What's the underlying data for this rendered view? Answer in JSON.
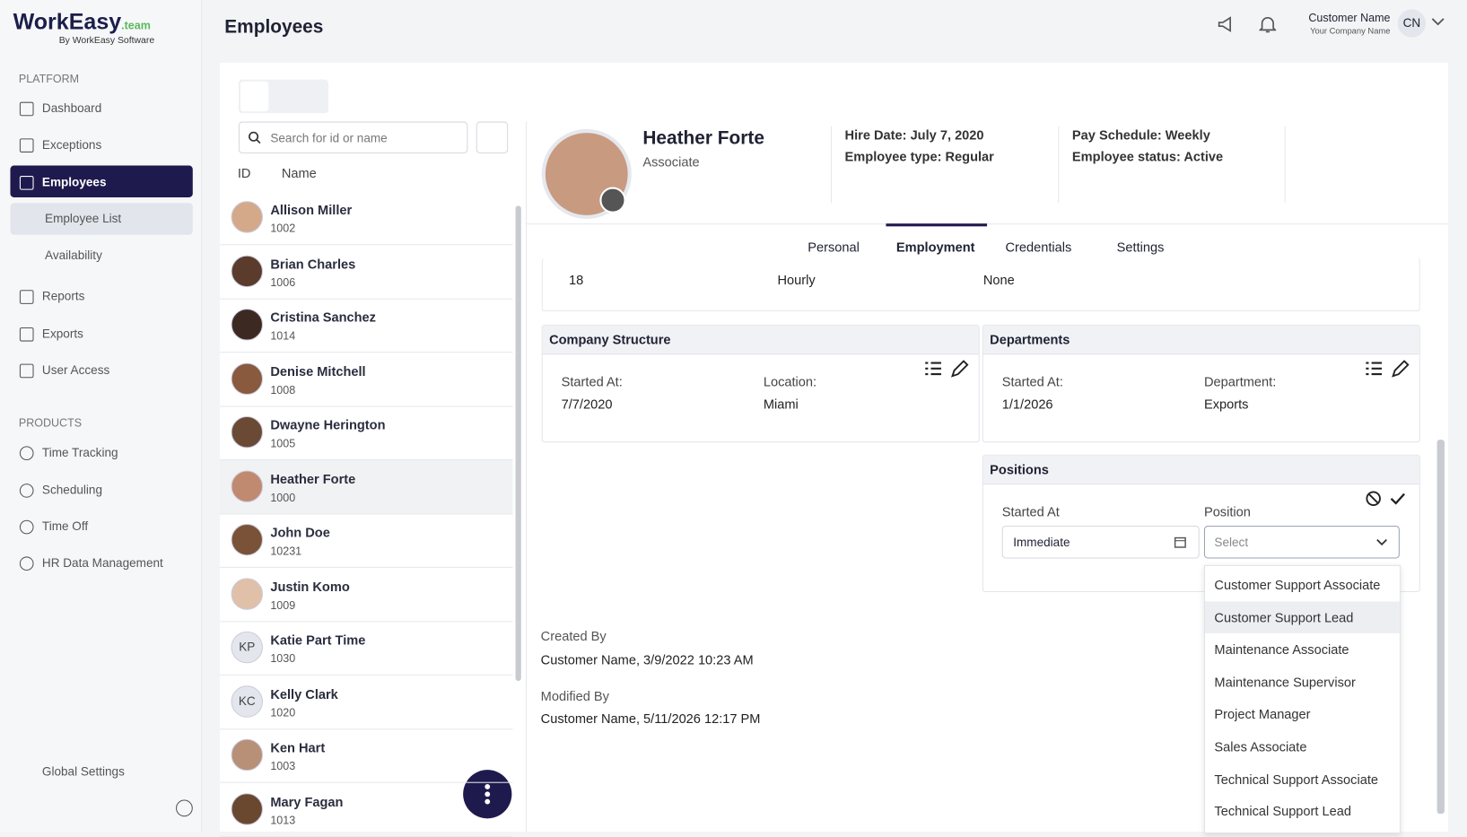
{
  "brand": {
    "logo": "WorkEasy",
    "logo_suffix": ".team",
    "tagline": "By WorkEasy Software"
  },
  "sidebar": {
    "platform_label": "PLATFORM",
    "platform_items": [
      "Dashboard",
      "Exceptions",
      "Employees",
      "Employee List",
      "Availability",
      "Reports",
      "Exports",
      "User Access"
    ],
    "products_label": "PRODUCTS",
    "product_items": [
      "Time Tracking",
      "Scheduling",
      "Time Off",
      "HR Data Management"
    ],
    "settings": "Global Settings"
  },
  "header": {
    "title": "Employees",
    "user_name": "Customer Name",
    "company": "Your Company Name",
    "initials": "CN"
  },
  "list": {
    "search_placeholder": "Search for id or name",
    "col_id": "ID",
    "col_name": "Name",
    "employees": [
      {
        "name": "Allison Miller",
        "id": "1002"
      },
      {
        "name": "Brian Charles",
        "id": "1006"
      },
      {
        "name": "Cristina Sanchez",
        "id": "1014"
      },
      {
        "name": "Denise Mitchell",
        "id": "1008"
      },
      {
        "name": "Dwayne Herington",
        "id": "1005"
      },
      {
        "name": "Heather Forte",
        "id": "1000"
      },
      {
        "name": "John Doe",
        "id": "10231"
      },
      {
        "name": "Justin Komo",
        "id": "1009"
      },
      {
        "name": "Katie Part Time",
        "id": "1030",
        "initials": "KP"
      },
      {
        "name": "Kelly Clark",
        "id": "1020",
        "initials": "KC"
      },
      {
        "name": "Ken Hart",
        "id": "1003"
      },
      {
        "name": "Mary Fagan",
        "id": "1013"
      }
    ]
  },
  "profile": {
    "name": "Heather Forte",
    "role": "Associate",
    "hire_date": "Hire Date: July 7, 2020",
    "employee_type": "Employee type: Regular",
    "pay_schedule": "Pay Schedule: Weekly",
    "status": "Employee status: Active"
  },
  "tabs": [
    "Personal",
    "Employment",
    "Credentials",
    "Settings"
  ],
  "partial_row": [
    "18",
    "Hourly",
    "None"
  ],
  "company_structure": {
    "title": "Company Structure",
    "started_label": "Started At:",
    "started": "7/7/2020",
    "location_label": "Location:",
    "location": "Miami"
  },
  "departments": {
    "title": "Departments",
    "started_label": "Started At:",
    "started": "1/1/2026",
    "department_label": "Department:",
    "department": "Exports"
  },
  "positions": {
    "title": "Positions",
    "started_label": "Started At",
    "position_label": "Position",
    "started_value": "Immediate",
    "select_placeholder": "Select",
    "options": [
      "Customer Support Associate",
      "Customer Support Lead",
      "Maintenance Associate",
      "Maintenance Supervisor",
      "Project Manager",
      "Sales Associate",
      "Technical Support Associate",
      "Technical Support Lead"
    ]
  },
  "audit": {
    "created_label": "Created By",
    "created": "Customer Name, 3/9/2022 10:23 AM",
    "modified_label": "Modified By",
    "modified": "Customer Name, 5/11/2026 12:17 PM"
  }
}
